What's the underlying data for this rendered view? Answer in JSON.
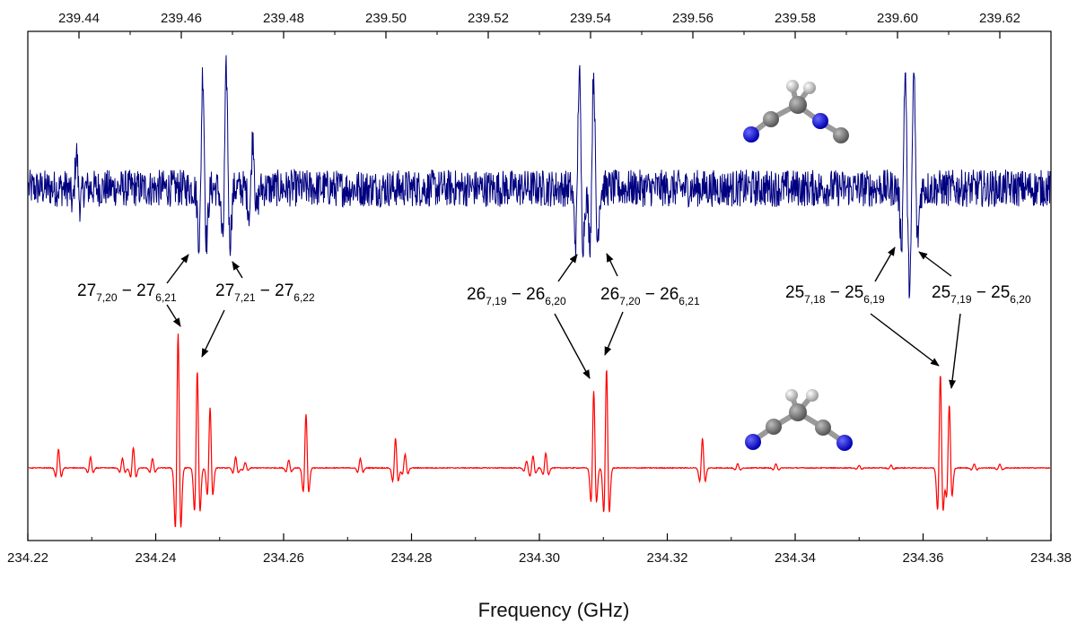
{
  "chart_data": {
    "type": "line",
    "xlabel": "Frequency (GHz)",
    "x_bottom": {
      "range": [
        234.22,
        234.38
      ],
      "ticks": [
        "234.22",
        "234.24",
        "234.26",
        "234.28",
        "234.30",
        "234.32",
        "234.34",
        "234.36",
        "234.38"
      ]
    },
    "x_top": {
      "range": [
        239.43,
        239.63
      ],
      "ticks": [
        "239.44",
        "239.46",
        "239.48",
        "239.50",
        "239.52",
        "239.54",
        "239.56",
        "239.58",
        "239.60",
        "239.62"
      ]
    },
    "grid": false,
    "legend": "none",
    "series": [
      {
        "axis": "top",
        "color": "#000080",
        "lines": [
          {
            "x": 239.4642,
            "amplitude": 1.0
          },
          {
            "x": 239.4688,
            "amplitude": 1.0
          },
          {
            "x": 239.5378,
            "amplitude": 1.0
          },
          {
            "x": 239.5406,
            "amplitude": 1.0
          },
          {
            "x": 239.6015,
            "amplitude": 1.0
          },
          {
            "x": 239.6032,
            "amplitude": 1.0
          },
          {
            "x": 239.474,
            "amplitude": 0.45
          },
          {
            "x": 239.4395,
            "amplitude": 0.3
          }
        ]
      },
      {
        "axis": "bottom",
        "color": "#ff0000",
        "lines": [
          {
            "x": 234.2435,
            "amplitude": 1.0
          },
          {
            "x": 234.2465,
            "amplitude": 0.72
          },
          {
            "x": 234.2485,
            "amplitude": 0.45
          },
          {
            "x": 234.2635,
            "amplitude": 0.4
          },
          {
            "x": 234.2775,
            "amplitude": 0.22
          },
          {
            "x": 234.3085,
            "amplitude": 0.57
          },
          {
            "x": 234.3105,
            "amplitude": 0.74
          },
          {
            "x": 234.3255,
            "amplitude": 0.22
          },
          {
            "x": 234.3627,
            "amplitude": 0.7
          },
          {
            "x": 234.3641,
            "amplitude": 0.47
          },
          {
            "x": 234.2248,
            "amplitude": 0.14
          },
          {
            "x": 234.2365,
            "amplitude": 0.15
          },
          {
            "x": 234.2298,
            "amplitude": 0.08
          },
          {
            "x": 234.2348,
            "amplitude": 0.07
          },
          {
            "x": 234.2395,
            "amplitude": 0.07
          },
          {
            "x": 234.2525,
            "amplitude": 0.08
          },
          {
            "x": 234.254,
            "amplitude": 0.04
          },
          {
            "x": 234.2608,
            "amplitude": 0.06
          },
          {
            "x": 234.272,
            "amplitude": 0.07
          },
          {
            "x": 234.279,
            "amplitude": 0.1
          },
          {
            "x": 234.298,
            "amplitude": 0.05
          },
          {
            "x": 234.299,
            "amplitude": 0.09
          },
          {
            "x": 234.301,
            "amplitude": 0.11
          },
          {
            "x": 234.331,
            "amplitude": 0.03
          },
          {
            "x": 234.337,
            "amplitude": 0.03
          },
          {
            "x": 234.35,
            "amplitude": 0.02
          },
          {
            "x": 234.355,
            "amplitude": 0.02
          },
          {
            "x": 234.368,
            "amplitude": 0.03
          },
          {
            "x": 234.372,
            "amplitude": 0.03
          }
        ]
      }
    ],
    "annotations": [
      {
        "upper": "27",
        "sub1": "7,20",
        "mid": " − 27",
        "sub2": "6,21"
      },
      {
        "upper": "27",
        "sub1": "7,21",
        "mid": " − 27",
        "sub2": "6,22"
      },
      {
        "upper": "26",
        "sub1": "7,19",
        "mid": " − 26",
        "sub2": "6,20"
      },
      {
        "upper": "26",
        "sub1": "7,20",
        "mid": " − 26",
        "sub2": "6,21"
      },
      {
        "upper": "25",
        "sub1": "7,18",
        "mid": " − 25",
        "sub2": "6,19"
      },
      {
        "upper": "25",
        "sub1": "7,19",
        "mid": " − 25",
        "sub2": "6,20"
      }
    ],
    "molecules": [
      {
        "name": "molecule-upper",
        "panel": "top"
      },
      {
        "name": "molecule-lower",
        "panel": "bottom"
      }
    ]
  }
}
